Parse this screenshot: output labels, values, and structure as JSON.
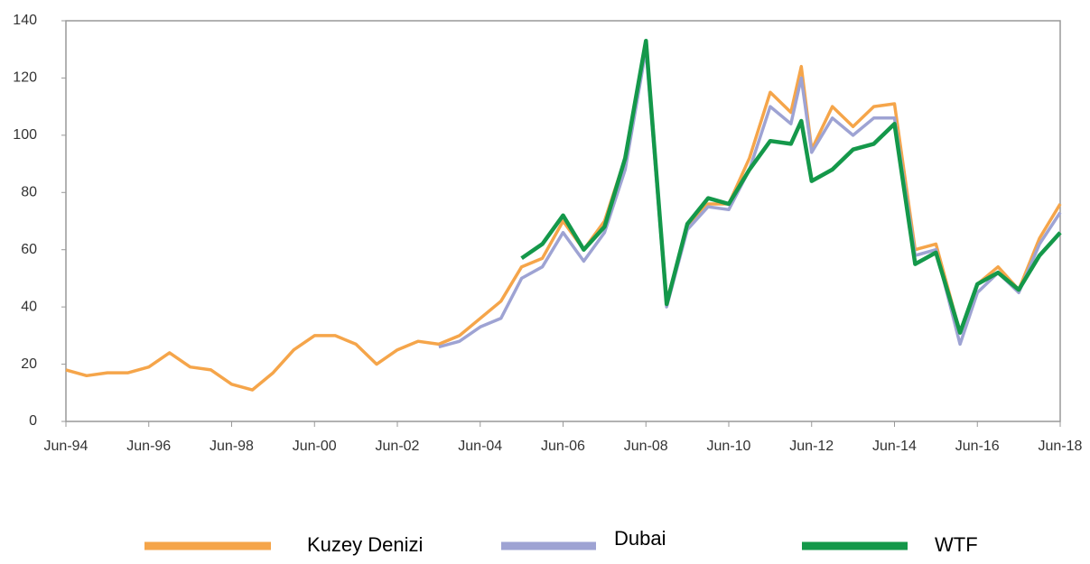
{
  "chart_data": {
    "type": "line",
    "x": [
      "1994-06",
      "1994-12",
      "1995-06",
      "1995-12",
      "1996-06",
      "1996-12",
      "1997-06",
      "1997-12",
      "1998-06",
      "1998-12",
      "1999-06",
      "1999-12",
      "2000-06",
      "2000-12",
      "2001-06",
      "2001-12",
      "2002-06",
      "2002-12",
      "2003-06",
      "2003-12",
      "2004-06",
      "2004-12",
      "2005-06",
      "2005-12",
      "2006-06",
      "2006-12",
      "2007-06",
      "2007-12",
      "2008-06",
      "2008-12",
      "2009-06",
      "2009-12",
      "2010-06",
      "2010-12",
      "2011-06",
      "2011-12",
      "2012-03",
      "2012-06",
      "2012-12",
      "2013-06",
      "2013-12",
      "2014-06",
      "2014-12",
      "2015-06",
      "2016-01",
      "2016-06",
      "2016-12",
      "2017-06",
      "2017-12",
      "2018-06"
    ],
    "series": [
      {
        "name": "Kuzey Denizi",
        "color": "#f5a54a",
        "values": [
          18,
          16,
          17,
          17,
          19,
          24,
          19,
          18,
          13,
          11,
          17,
          25,
          30,
          30,
          27,
          20,
          25,
          28,
          27,
          30,
          36,
          42,
          54,
          57,
          70,
          60,
          70,
          92,
          133,
          42,
          68,
          76,
          76,
          92,
          115,
          108,
          124,
          95,
          110,
          103,
          110,
          111,
          60,
          62,
          31,
          48,
          54,
          46,
          64,
          76
        ]
      },
      {
        "name": "Dubai",
        "color": "#9ea3d3",
        "values": [
          null,
          null,
          null,
          null,
          null,
          null,
          null,
          null,
          null,
          null,
          null,
          null,
          null,
          null,
          null,
          null,
          null,
          null,
          26,
          28,
          33,
          36,
          50,
          54,
          66,
          56,
          66,
          88,
          130,
          40,
          67,
          75,
          74,
          88,
          110,
          104,
          120,
          94,
          106,
          100,
          106,
          106,
          58,
          60,
          27,
          45,
          52,
          45,
          62,
          73
        ]
      },
      {
        "name": "WTF",
        "color": "#14984a",
        "values": [
          null,
          null,
          null,
          null,
          null,
          null,
          null,
          null,
          null,
          null,
          null,
          null,
          null,
          null,
          null,
          null,
          null,
          null,
          null,
          null,
          null,
          null,
          57,
          62,
          72,
          60,
          68,
          92,
          133,
          41,
          69,
          78,
          76,
          88,
          98,
          97,
          105,
          84,
          88,
          95,
          97,
          104,
          55,
          59,
          31,
          48,
          52,
          46,
          58,
          66
        ]
      }
    ],
    "xlim": [
      "1994-06",
      "2018-06"
    ],
    "xticks": [
      {
        "value": "1994-06",
        "label": "Jun-94"
      },
      {
        "value": "1996-06",
        "label": "Jun-96"
      },
      {
        "value": "1998-06",
        "label": "Jun-98"
      },
      {
        "value": "2000-06",
        "label": "Jun-00"
      },
      {
        "value": "2002-06",
        "label": "Jun-02"
      },
      {
        "value": "2004-06",
        "label": "Jun-04"
      },
      {
        "value": "2006-06",
        "label": "Jun-06"
      },
      {
        "value": "2008-06",
        "label": "Jun-08"
      },
      {
        "value": "2010-06",
        "label": "Jun-10"
      },
      {
        "value": "2012-06",
        "label": "Jun-12"
      },
      {
        "value": "2014-06",
        "label": "Jun-14"
      },
      {
        "value": "2016-06",
        "label": "Jun-16"
      },
      {
        "value": "2018-06",
        "label": "Jun-18"
      }
    ],
    "ylim": [
      0,
      140
    ],
    "yticks": [
      0,
      20,
      40,
      60,
      80,
      100,
      120,
      140
    ]
  }
}
